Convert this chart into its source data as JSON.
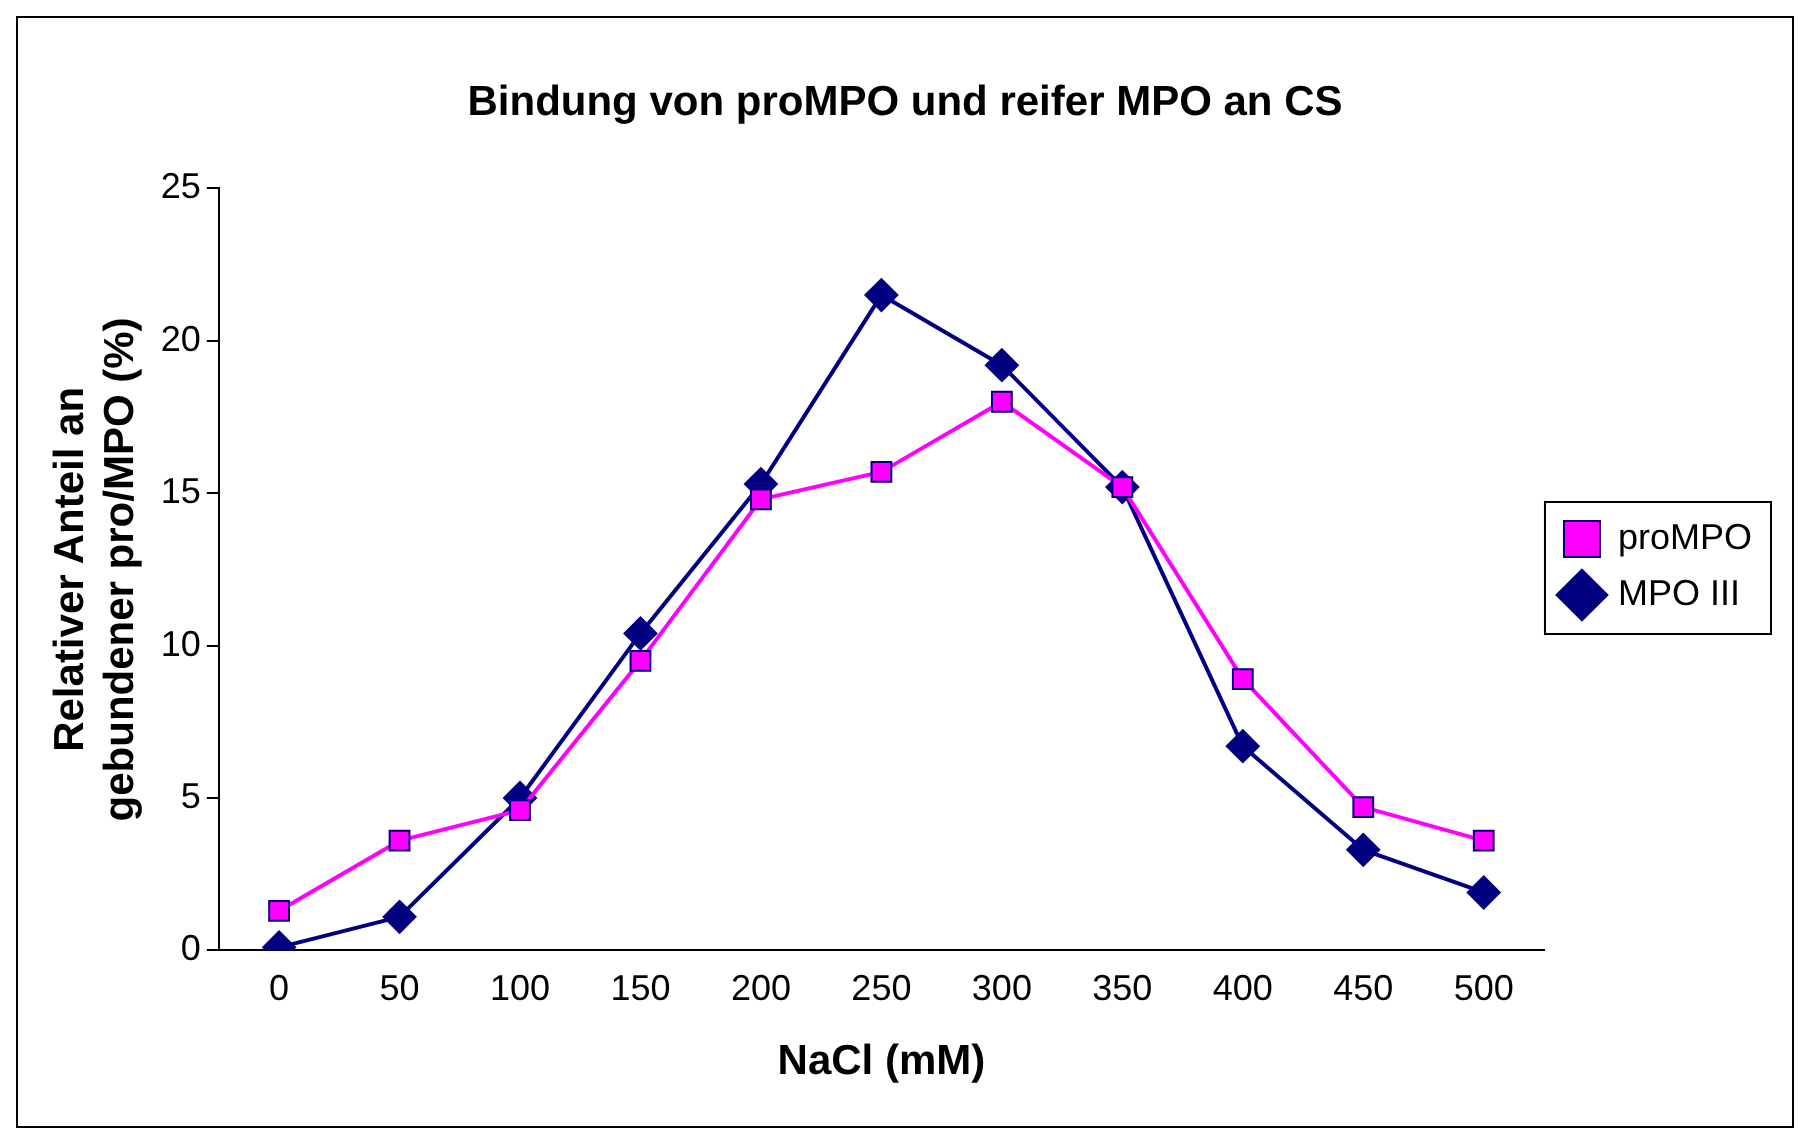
{
  "chart_data": {
    "type": "line",
    "title": "Bindung von proMPO und reifer MPO an CS",
    "xlabel": "NaCl (mM)",
    "ylabel": "Relativer Anteil an\ngebundener pro/MPO (%)",
    "categories": [
      "0",
      "50",
      "100",
      "150",
      "200",
      "250",
      "300",
      "350",
      "400",
      "450",
      "500"
    ],
    "series": [
      {
        "name": "MPO III",
        "color": "#000080",
        "marker": "diamond",
        "values": [
          0.1,
          1.1,
          5.0,
          10.4,
          15.3,
          21.5,
          19.2,
          15.2,
          6.7,
          3.3,
          1.9
        ]
      },
      {
        "name": "proMPO",
        "color": "#ff00ff",
        "marker": "square",
        "values": [
          1.3,
          3.6,
          4.6,
          9.5,
          14.8,
          15.7,
          18.0,
          15.2,
          8.9,
          4.7,
          3.6
        ]
      }
    ],
    "ylim": [
      0,
      25
    ],
    "yticks": [
      0,
      5,
      10,
      15,
      20,
      25
    ],
    "grid": false,
    "legend": "right"
  }
}
